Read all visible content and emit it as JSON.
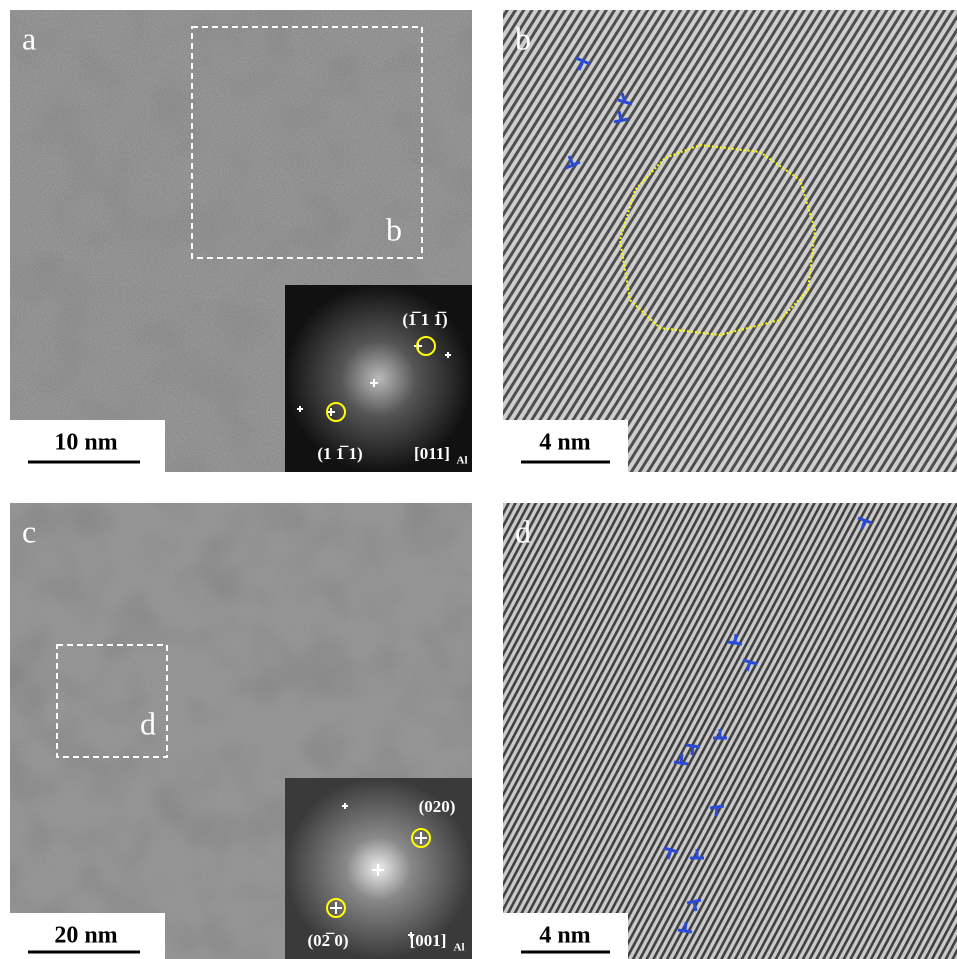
{
  "panels": [
    {
      "label": "a",
      "scale_bar": "10 nm",
      "box_label": "b",
      "inset": {
        "spots": [
          "(1̅ 1 1̅)",
          "(1 1̅ 1)"
        ],
        "zone_axis": "[011]",
        "zone_sub": "Al"
      }
    },
    {
      "label": "b",
      "scale_bar": "4 nm"
    },
    {
      "label": "c",
      "scale_bar": "20 nm",
      "box_label": "d",
      "inset": {
        "spots": [
          "(020)",
          "(02̅ 0)"
        ],
        "zone_axis": "[001]",
        "zone_sub": "Al"
      }
    },
    {
      "label": "d",
      "scale_bar": "4 nm"
    }
  ]
}
